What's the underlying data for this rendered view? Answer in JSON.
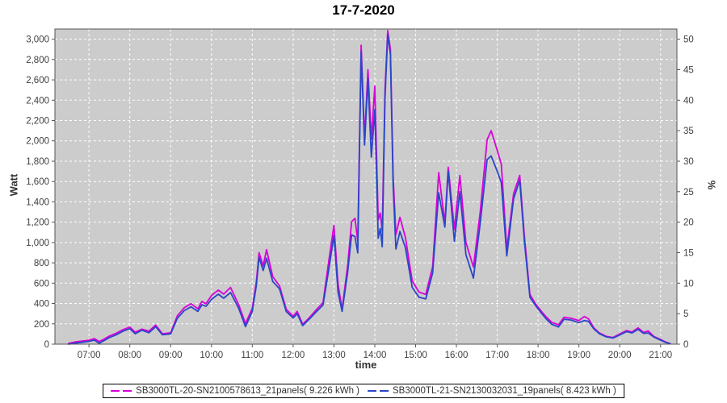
{
  "title": "17-7-2020",
  "axes": {
    "left_label": "Watt",
    "right_label": "%",
    "bottom_label": "time",
    "watt_domain_max": 3100,
    "watt_tick_step": 200,
    "watt_tick_max": 3000,
    "pct_tick_step": 5,
    "pct_tick_max": 50,
    "watts_per_pct": 60,
    "time_min": "06:10",
    "time_max": "21:24",
    "time_ticks": [
      "07:00",
      "08:00",
      "09:00",
      "10:00",
      "11:00",
      "12:00",
      "13:00",
      "14:00",
      "15:00",
      "16:00",
      "17:00",
      "18:00",
      "19:00",
      "20:00",
      "21:00"
    ]
  },
  "colors": {
    "plot_bg": "#cccccc",
    "grid": "#ffffff",
    "axis": "#555555",
    "tick_text": "#3f3f3f",
    "legend_border": "#000000"
  },
  "chart_data": {
    "type": "line",
    "title": "17-7-2020",
    "xlabel": "time",
    "ylabel_left": "Watt",
    "ylabel_right": "%",
    "ylim_left": [
      0,
      3100
    ],
    "ylim_right": [
      0,
      51.7
    ],
    "grid": "white dashed on gray plot background",
    "legend_position": "bottom center boxed",
    "x": [
      "06:30",
      "06:40",
      "06:50",
      "07:00",
      "07:08",
      "07:15",
      "07:22",
      "07:30",
      "07:40",
      "07:50",
      "08:00",
      "08:08",
      "08:18",
      "08:28",
      "08:38",
      "08:48",
      "09:00",
      "09:10",
      "09:20",
      "09:30",
      "09:40",
      "09:46",
      "09:52",
      "10:00",
      "10:10",
      "10:18",
      "10:28",
      "10:40",
      "10:50",
      "11:00",
      "11:06",
      "11:10",
      "11:16",
      "11:21",
      "11:30",
      "11:40",
      "11:50",
      "12:00",
      "12:06",
      "12:14",
      "12:24",
      "12:34",
      "12:44",
      "12:52",
      "13:00",
      "13:06",
      "13:12",
      "13:20",
      "13:26",
      "13:31",
      "13:35",
      "13:40",
      "13:45",
      "13:50",
      "13:55",
      "14:00",
      "14:05",
      "14:08",
      "14:11",
      "14:15",
      "14:19",
      "14:23",
      "14:27",
      "14:31",
      "14:37",
      "14:45",
      "14:55",
      "15:05",
      "15:15",
      "15:25",
      "15:34",
      "15:43",
      "15:48",
      "15:57",
      "16:05",
      "16:14",
      "16:25",
      "16:35",
      "16:45",
      "16:51",
      "17:00",
      "17:06",
      "17:14",
      "17:24",
      "17:33",
      "17:40",
      "17:48",
      "17:56",
      "18:04",
      "18:12",
      "18:20",
      "18:30",
      "18:38",
      "18:48",
      "19:00",
      "19:08",
      "19:14",
      "19:22",
      "19:30",
      "19:40",
      "19:50",
      "20:00",
      "20:10",
      "20:18",
      "20:27",
      "20:35",
      "20:42",
      "20:50",
      "21:00",
      "21:08",
      "21:14"
    ],
    "series": [
      {
        "name": "SB3000TL-20-SN2100578613_21panels( 9.226 kWh )",
        "energy_kwh": 9.226,
        "color": "#d900d9",
        "values": [
          8,
          22,
          30,
          38,
          55,
          25,
          48,
          80,
          108,
          142,
          168,
          118,
          148,
          128,
          188,
          102,
          112,
          280,
          358,
          398,
          348,
          420,
          398,
          478,
          532,
          492,
          558,
          388,
          202,
          352,
          620,
          900,
          770,
          930,
          665,
          575,
          342,
          275,
          322,
          196,
          262,
          338,
          408,
          800,
          1168,
          590,
          342,
          768,
          1205,
          1238,
          1012,
          2940,
          2020,
          2700,
          2018,
          2538,
          1222,
          1290,
          1112,
          2500,
          3085,
          2900,
          1650,
          1078,
          1248,
          1050,
          622,
          512,
          488,
          762,
          1688,
          1192,
          1740,
          1130,
          1660,
          1000,
          758,
          1300,
          2010,
          2100,
          1905,
          1772,
          932,
          1480,
          1660,
          1050,
          490,
          398,
          330,
          268,
          215,
          190,
          265,
          255,
          232,
          272,
          250,
          160,
          110,
          78,
          66,
          100,
          134,
          120,
          160,
          116,
          130,
          76,
          46,
          20,
          6
        ]
      },
      {
        "name": "SB3000TL-21-SN2130032031_19panels( 8.423 kWh )",
        "energy_kwh": 8.423,
        "color": "#2a46c8",
        "values": [
          0,
          10,
          18,
          28,
          40,
          8,
          35,
          65,
          92,
          128,
          152,
          102,
          138,
          112,
          172,
          92,
          100,
          255,
          330,
          368,
          322,
          388,
          372,
          440,
          492,
          452,
          508,
          352,
          172,
          322,
          580,
          855,
          725,
          845,
          618,
          545,
          320,
          258,
          300,
          182,
          248,
          318,
          385,
          720,
          1070,
          510,
          322,
          700,
          1075,
          1058,
          898,
          2880,
          1958,
          2615,
          1840,
          2308,
          1042,
          1138,
          958,
          2420,
          3048,
          2850,
          1560,
          936,
          1108,
          948,
          558,
          462,
          445,
          700,
          1490,
          1152,
          1700,
          1012,
          1500,
          880,
          650,
          1190,
          1815,
          1852,
          1700,
          1590,
          868,
          1430,
          1612,
          1000,
          462,
          382,
          312,
          248,
          196,
          170,
          245,
          238,
          212,
          232,
          225,
          150,
          102,
          72,
          60,
          90,
          124,
          110,
          146,
          106,
          110,
          70,
          40,
          16,
          4
        ]
      }
    ]
  }
}
